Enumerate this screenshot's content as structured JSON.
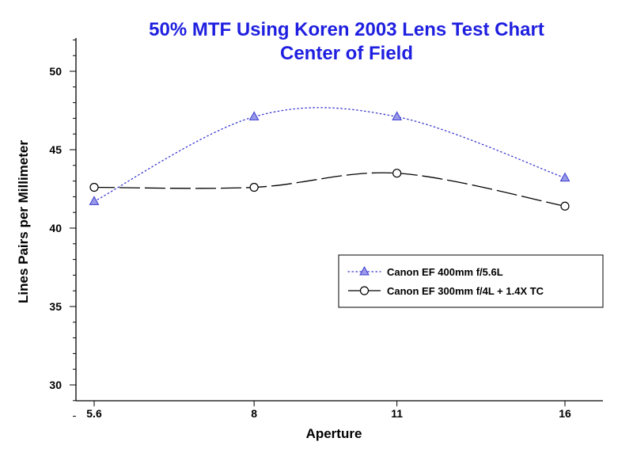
{
  "chart_data": {
    "type": "line",
    "title": "50% MTF Using Koren 2003 Lens Test Chart",
    "subtitle": "Center of Field",
    "xlabel": "Aperture",
    "ylabel": "Lines Pairs per Millimeter",
    "x_scale": "log",
    "xlim": [
      5.6,
      17
    ],
    "ylim": [
      28,
      52
    ],
    "x_ticks": [
      {
        "value": 5.6,
        "label": "5.6"
      },
      {
        "value": 8,
        "label": "8"
      },
      {
        "value": 11,
        "label": "11"
      },
      {
        "value": 16,
        "label": "16"
      }
    ],
    "y_ticks": [
      30,
      35,
      40,
      45,
      50
    ],
    "y_minor_step": 1,
    "grid": false,
    "legend_position": "right",
    "series": [
      {
        "name": "Canon EF 400mm f/5.6L",
        "x": [
          5.6,
          8,
          11,
          16
        ],
        "values": [
          41.7,
          47.1,
          47.1,
          43.2
        ],
        "marker": "triangle",
        "line_style": "dotted",
        "marker_fill": "#9a9ae8",
        "line_color": "#3a3ad0"
      },
      {
        "name": "Canon EF 300mm f/4L + 1.4X TC",
        "x": [
          5.6,
          8,
          11,
          16
        ],
        "values": [
          42.6,
          42.6,
          43.5,
          41.4
        ],
        "marker": "circle",
        "line_style": "dashed",
        "marker_fill": "#ffffff",
        "line_color": "#000000"
      }
    ]
  }
}
